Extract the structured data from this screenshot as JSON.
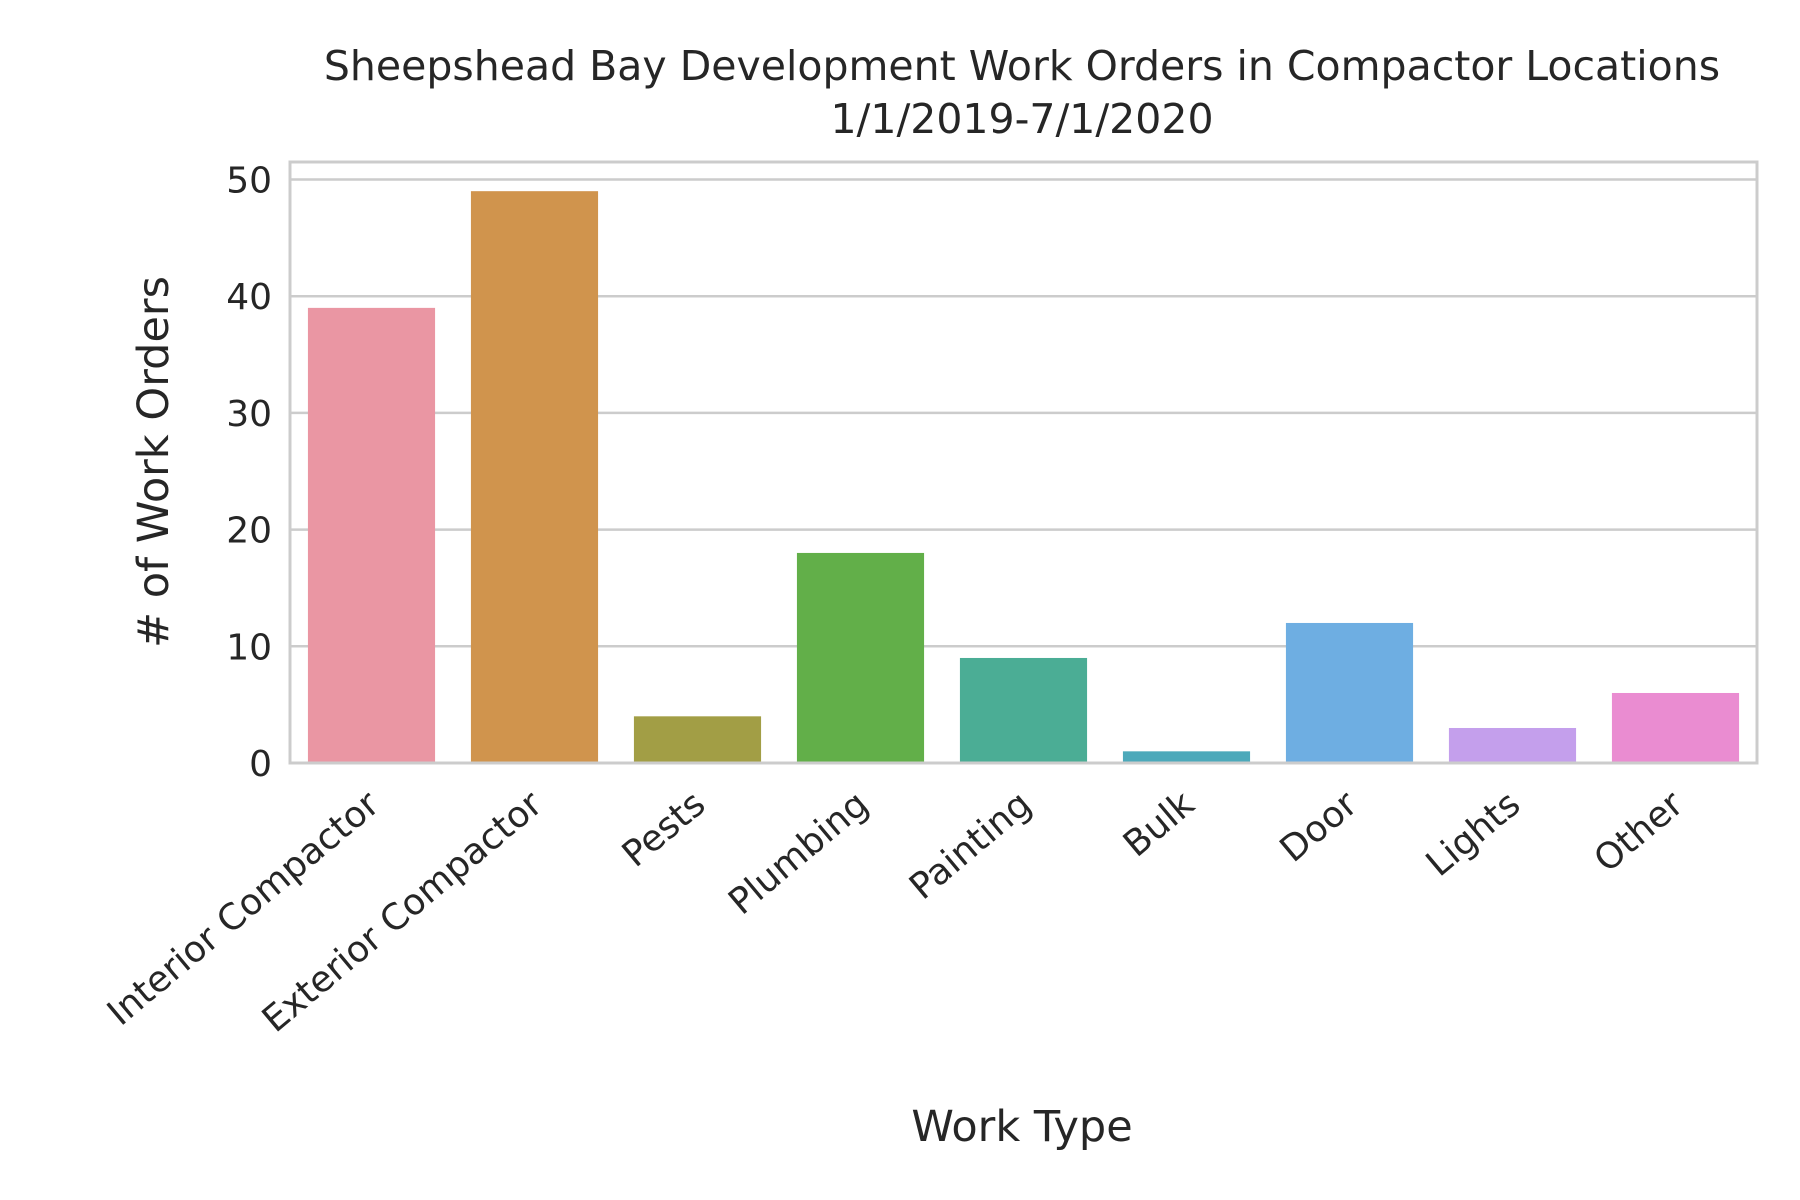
{
  "chart_data": {
    "type": "bar",
    "title": "Sheepshead Bay Development Work Orders in Compactor Locations",
    "subtitle": "1/1/2019-7/1/2020",
    "xlabel": "Work Type",
    "ylabel": "# of Work Orders",
    "categories": [
      "Interior Compactor",
      "Exterior Compactor",
      "Pests",
      "Plumbing",
      "Painting",
      "Bulk",
      "Door",
      "Lights",
      "Other"
    ],
    "values": [
      39,
      49,
      4,
      18,
      9,
      1,
      12,
      3,
      6
    ],
    "colors": [
      "#ea96a3",
      "#d0944d",
      "#a29e45",
      "#62af49",
      "#4bad95",
      "#4ca9ba",
      "#6eaee2",
      "#c49fec",
      "#ea8cd1"
    ],
    "ylim": [
      0,
      51.5
    ],
    "yticks": [
      "0",
      "10",
      "20",
      "30",
      "40",
      "50"
    ],
    "grid": "horizontal",
    "legend": "none"
  }
}
